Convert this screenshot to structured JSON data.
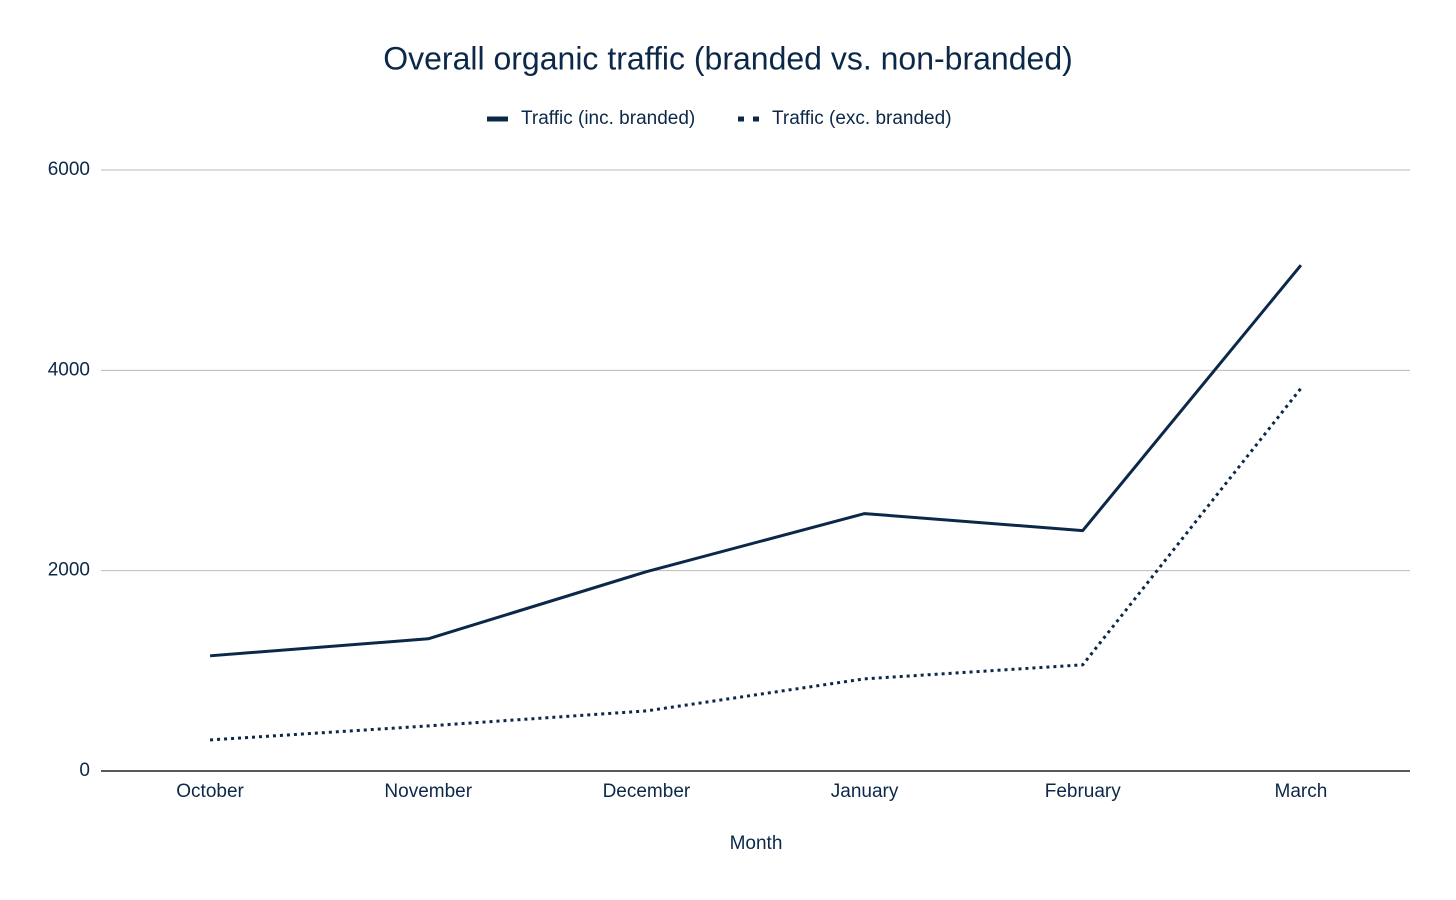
{
  "chart_data": {
    "type": "line",
    "title": "Overall organic traffic (branded vs. non-branded)",
    "x_label": "Month",
    "categories": [
      "October",
      "November",
      "December",
      "January",
      "February",
      "March"
    ],
    "series": [
      {
        "name": "Traffic (inc. branded)",
        "color": "#0c2849",
        "dash": "solid",
        "values": [
          1150,
          1320,
          1990,
          2570,
          2400,
          5050
        ]
      },
      {
        "name": "Traffic (exc. branded)",
        "color": "#0c2849",
        "dash": "dotted",
        "values": [
          310,
          450,
          600,
          920,
          1060,
          3820
        ]
      }
    ],
    "ylim": [
      0,
      6000
    ],
    "yticks": [
      0,
      2000,
      4000,
      6000
    ],
    "grid": true,
    "legend": "top"
  }
}
